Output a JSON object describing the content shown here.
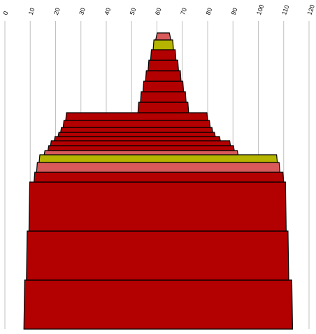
{
  "chart_data": {
    "type": "area",
    "title": "",
    "xlabel": "",
    "ylabel": "",
    "x_ticks": [
      0,
      10,
      20,
      30,
      40,
      50,
      60,
      70,
      80,
      90,
      100,
      110,
      120
    ],
    "xlim": [
      0,
      120
    ],
    "grid": "vertical lines at each x tick",
    "legend": "none",
    "colors": {
      "red": "#b30000",
      "pink": "#d85a5a",
      "olive": "#b5b500",
      "outline": "#000000",
      "grid": "#c0c0c0"
    },
    "layers": [
      {
        "left": 7.5,
        "right": 113.5,
        "color": "red"
      },
      {
        "left": 8.5,
        "right": 112.0,
        "color": "red"
      },
      {
        "left": 9.5,
        "right": 111.0,
        "color": "red"
      },
      {
        "left": 11.5,
        "right": 110.0,
        "color": "red"
      },
      {
        "left": 12.5,
        "right": 108.5,
        "color": "pink"
      },
      {
        "left": 13.5,
        "right": 107.5,
        "color": "olive"
      },
      {
        "left": 15.5,
        "right": 92.0,
        "color": "pink"
      },
      {
        "left": 17.0,
        "right": 90.5,
        "color": "red"
      },
      {
        "left": 18.0,
        "right": 89.0,
        "color": "red"
      },
      {
        "left": 19.5,
        "right": 85.0,
        "color": "red"
      },
      {
        "left": 21.0,
        "right": 83.0,
        "color": "red"
      },
      {
        "left": 22.0,
        "right": 82.0,
        "color": "red"
      },
      {
        "left": 23.0,
        "right": 81.0,
        "color": "red"
      },
      {
        "left": 24.0,
        "right": 80.0,
        "color": "red"
      },
      {
        "left": 52.5,
        "right": 72.5,
        "color": "red"
      },
      {
        "left": 53.5,
        "right": 71.5,
        "color": "red"
      },
      {
        "left": 54.5,
        "right": 70.5,
        "color": "red"
      },
      {
        "left": 55.5,
        "right": 69.5,
        "color": "red"
      },
      {
        "left": 56.5,
        "right": 68.5,
        "color": "red"
      },
      {
        "left": 57.5,
        "right": 67.5,
        "color": "red"
      },
      {
        "left": 58.5,
        "right": 66.5,
        "color": "olive"
      },
      {
        "left": 59.5,
        "right": 65.5,
        "color": "pink"
      }
    ]
  }
}
